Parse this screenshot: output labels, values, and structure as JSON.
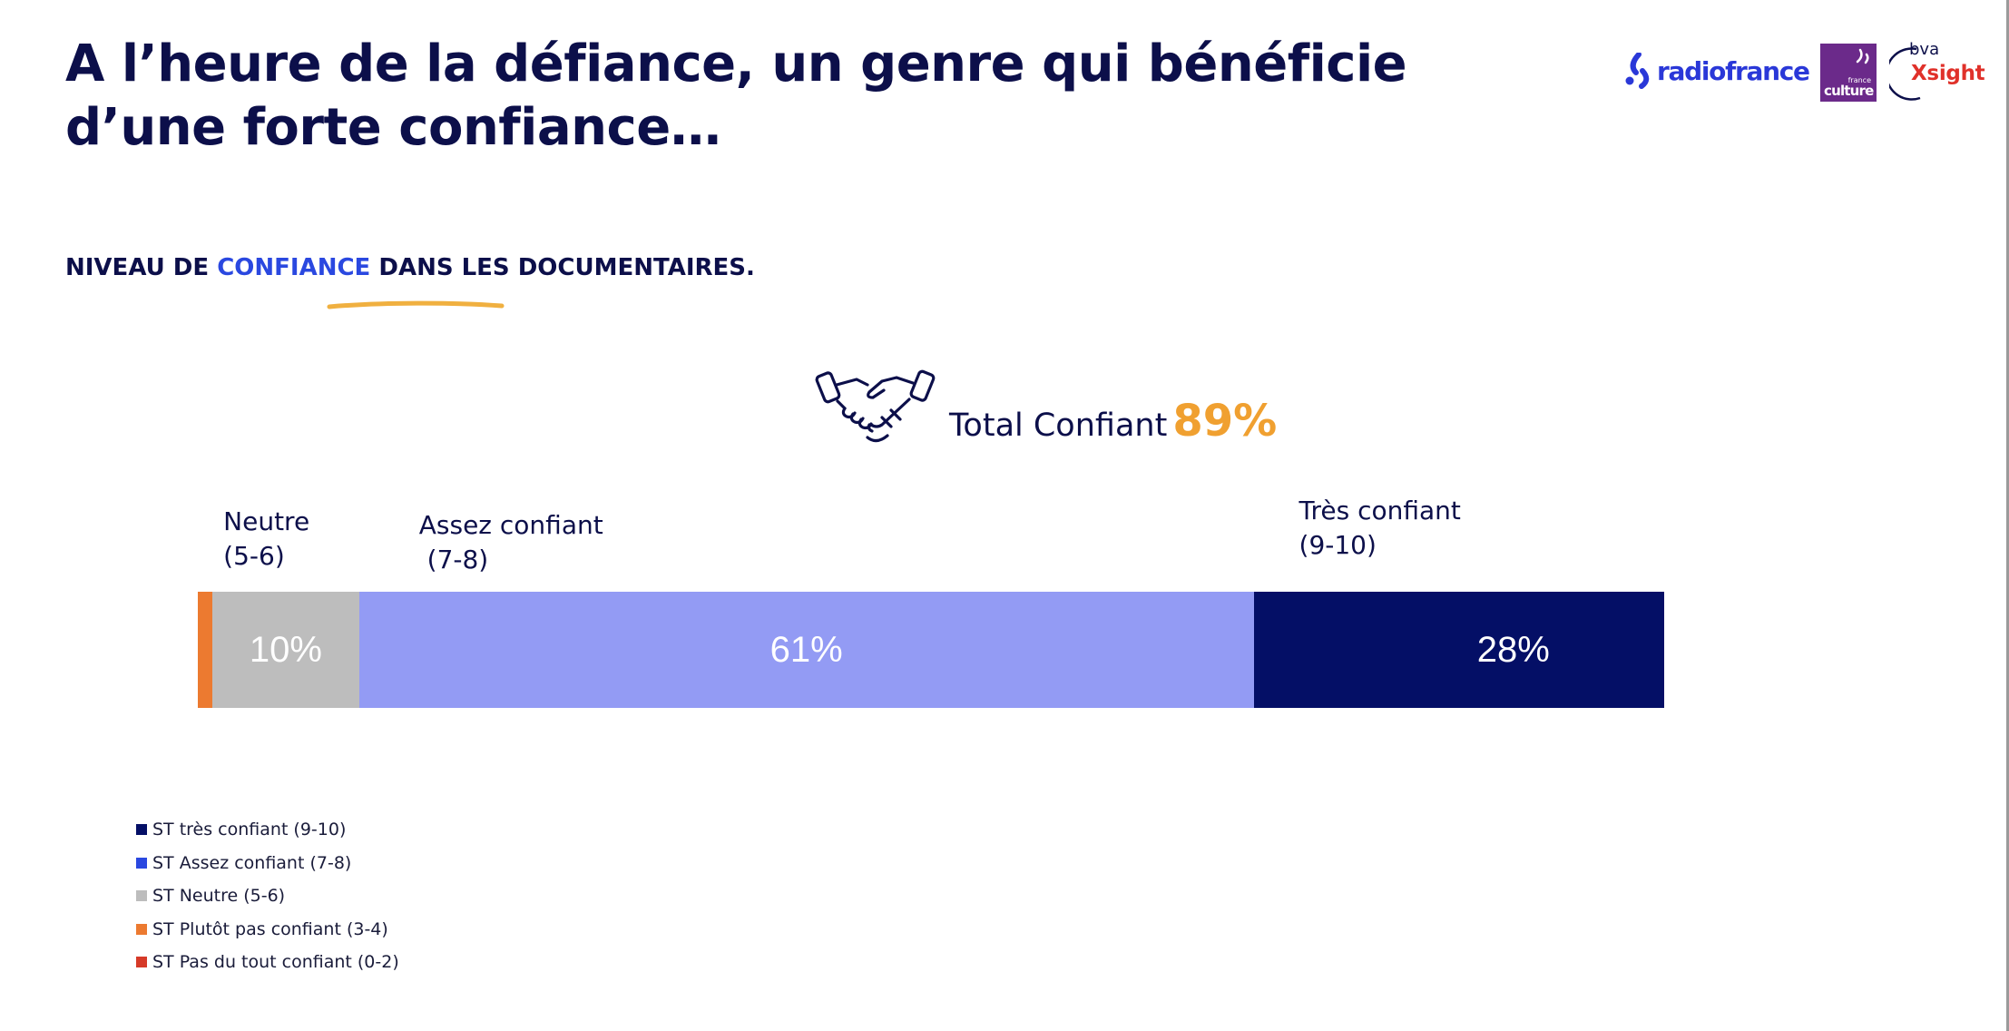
{
  "slide": {
    "title": "A l’heure de la défiance, un genre qui bénéficie d’une forte confiance…",
    "subtitle": {
      "prefix": "NIVEAU DE ",
      "accent": "CONFIANCE",
      "suffix": " DANS LES DOCUMENTAIRES."
    }
  },
  "logos": {
    "radiofrance": "radiofrance",
    "franceculture_small": "france",
    "franceculture_name": "culture",
    "bva": "bva",
    "xsight": "Xsight"
  },
  "total": {
    "icon": "handshake-icon",
    "label": "Total Confiant",
    "value": "89%"
  },
  "colors": {
    "title": "#0c0f4a",
    "accent": "#2a48e0",
    "total_value": "#f0a030"
  },
  "chart_data": {
    "type": "bar",
    "orientation": "horizontal-stacked",
    "unit": "%",
    "xlim": [
      0,
      100
    ],
    "grid": false,
    "legend_position": "bottom-left",
    "segments": [
      {
        "key": "plutot_pas",
        "value": 1,
        "display": "",
        "above_label": "",
        "color": "#ec7a30"
      },
      {
        "key": "neutre",
        "value": 10,
        "display": "10%",
        "above_label": "Neutre\n(5-6)",
        "color": "#bdbdbd"
      },
      {
        "key": "assez",
        "value": 61,
        "display": "61%",
        "above_label": "Assez confiant\n (7-8)",
        "color": "#939bf4"
      },
      {
        "key": "tres",
        "value": 28,
        "display": "28%",
        "above_label": "Très confiant\n(9-10)",
        "color": "#040f66"
      }
    ],
    "legend": [
      {
        "label": "ST très confiant (9-10)",
        "color": "#040f66"
      },
      {
        "label": "ST Assez confiant (7-8)",
        "color": "#2a48e0"
      },
      {
        "label": "ST Neutre (5-6)",
        "color": "#bdbdbd"
      },
      {
        "label": "ST Plutôt pas confiant (3-4)",
        "color": "#ec7a30"
      },
      {
        "label": "ST Pas du tout confiant (0-2)",
        "color": "#d63a28"
      }
    ]
  }
}
